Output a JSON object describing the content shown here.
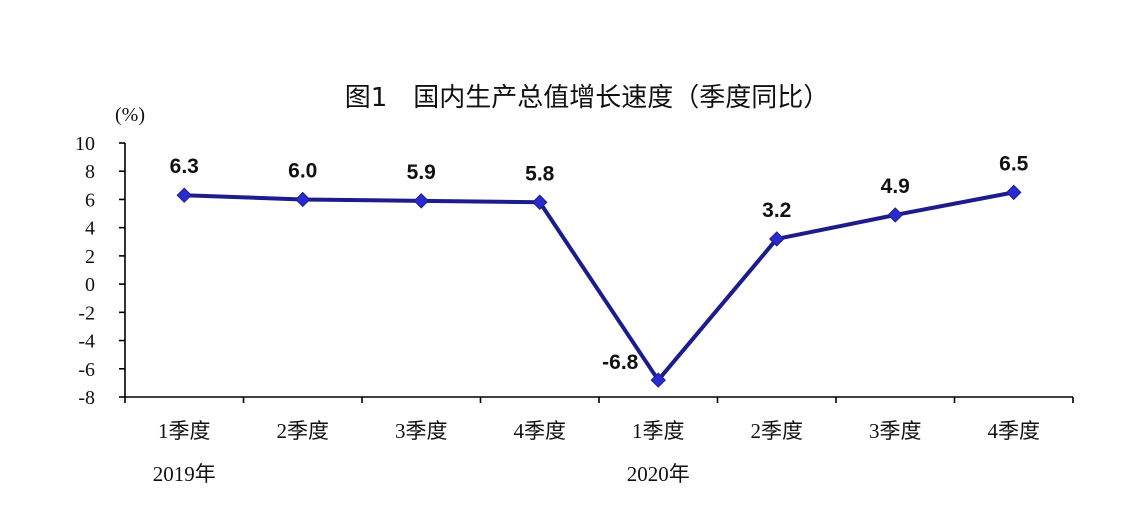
{
  "chart_data": {
    "type": "line",
    "title": "图1　国内生产总值增长速度（季度同比）",
    "ylabel": "(%)",
    "xlabel": "",
    "ylim": [
      -8,
      10
    ],
    "yticks": [
      "10",
      "8",
      "6",
      "4",
      "2",
      "0",
      "-2",
      "-4",
      "-6",
      "-8"
    ],
    "categories": [
      "1季度",
      "2季度",
      "3季度",
      "4季度",
      "1季度",
      "2季度",
      "3季度",
      "4季度"
    ],
    "groups": [
      {
        "label": "2019年",
        "span": [
          0,
          3
        ]
      },
      {
        "label": "2020年",
        "span": [
          4,
          7
        ]
      }
    ],
    "series": [
      {
        "values": [
          6.3,
          6.0,
          5.9,
          5.8,
          -6.8,
          3.2,
          4.9,
          6.5
        ],
        "labels": [
          "6.3",
          "6.0",
          "5.9",
          "5.8",
          "-6.8",
          "3.2",
          "4.9",
          "6.5"
        ],
        "color": "#1c1c8c",
        "marker_color": "#2a2acf"
      }
    ],
    "grid": false,
    "legend": "none"
  }
}
